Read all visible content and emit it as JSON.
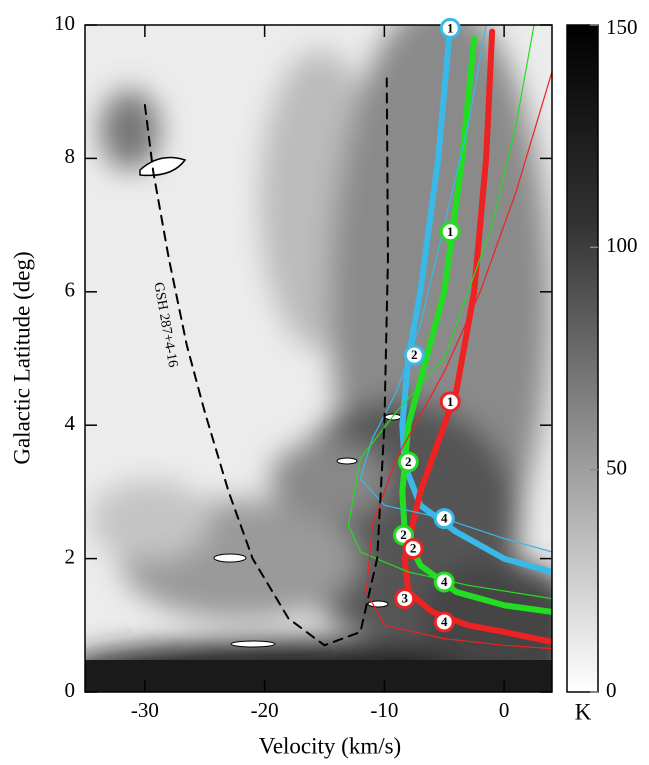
{
  "chart_data": {
    "type": "line",
    "x_label": "Velocity (km/s)",
    "y_label": "Galactic Latitude (deg)",
    "xlim": [
      -35,
      4
    ],
    "ylim": [
      0,
      10
    ],
    "xticks": [
      -30,
      -20,
      -10,
      0
    ],
    "yticks": [
      0,
      2,
      4,
      6,
      8,
      10
    ],
    "colorbar": {
      "lim": [
        0,
        150
      ],
      "ticks": [
        0,
        50,
        100,
        150
      ],
      "label": "K"
    },
    "series": [
      {
        "color": "#3ab8e8",
        "width": 6,
        "x": [
          -4.5,
          -5.5,
          -7,
          -8,
          -8.5,
          -8.3,
          -7,
          -4,
          0,
          4
        ],
        "values": [
          10,
          8,
          6,
          5,
          4,
          3.4,
          2.8,
          2.4,
          2.0,
          1.8
        ]
      },
      {
        "color": "#22dd22",
        "width": 6,
        "x": [
          -2.5,
          -3.5,
          -5,
          -6.5,
          -8,
          -8.5,
          -8.3,
          -7,
          -4,
          0,
          4
        ],
        "values": [
          9.8,
          8,
          6,
          5,
          4,
          3,
          2.4,
          1.9,
          1.5,
          1.3,
          1.2
        ]
      },
      {
        "color": "#ee2222",
        "width": 6,
        "x": [
          -1,
          -1.5,
          -2.5,
          -4,
          -5,
          -7,
          -8.3,
          -8,
          -6,
          -3,
          0,
          4
        ],
        "values": [
          9.9,
          8,
          6,
          4.5,
          4,
          3,
          2,
          1.5,
          1.2,
          1.0,
          0.9,
          0.75
        ]
      },
      {
        "color": "#3ab8e8",
        "width": 1.2,
        "x": [
          -1.5,
          -3,
          -5,
          -7,
          -9,
          -11,
          -12,
          -10,
          -5,
          0,
          4
        ],
        "values": [
          10,
          8.5,
          7,
          5.5,
          4.5,
          3.8,
          3.2,
          2.8,
          2.6,
          2.3,
          2.1
        ]
      },
      {
        "color": "#22dd22",
        "width": 1.2,
        "x": [
          2.5,
          1,
          -1,
          -3,
          -5,
          -9,
          -12,
          -13,
          -12,
          -8,
          -3,
          4
        ],
        "values": [
          10,
          8.5,
          7,
          6,
          5,
          4.2,
          3.5,
          2.5,
          2.1,
          1.8,
          1.6,
          1.4
        ]
      },
      {
        "color": "#ee2222",
        "width": 1.2,
        "x": [
          4,
          1,
          -2,
          -5,
          -9,
          -11,
          -11.5,
          -10,
          -5,
          0,
          4
        ],
        "values": [
          9.3,
          7.5,
          6,
          4.8,
          3.5,
          2.5,
          1.5,
          1.0,
          0.8,
          0.7,
          0.65
        ]
      },
      {
        "color": "#000000",
        "width": 2,
        "dash": true,
        "x": [
          -30,
          -29.3,
          -28,
          -26.5,
          -25,
          -23,
          -21,
          -18,
          -15,
          -12,
          -10.6,
          -10,
          -9.7,
          -9.8
        ],
        "values": [
          8.8,
          7.8,
          6.5,
          5.2,
          4.2,
          3,
          2,
          1.1,
          0.7,
          0.9,
          2,
          4,
          6.5,
          9.2
        ]
      }
    ],
    "annotations": [
      {
        "text": "GSH 287+4-16"
      },
      {
        "text": "1",
        "x": -4.5,
        "y": 9.95,
        "color": "#3ab8e8"
      },
      {
        "text": "1",
        "x": -4.5,
        "y": 6.9,
        "color": "#22dd22"
      },
      {
        "text": "1",
        "x": -4.5,
        "y": 4.35,
        "color": "#ee2222"
      },
      {
        "text": "2",
        "x": -7.5,
        "y": 5.05,
        "color": "#3ab8e8"
      },
      {
        "text": "2",
        "x": -8.0,
        "y": 3.45,
        "color": "#22dd22"
      },
      {
        "text": "2",
        "x": -8.4,
        "y": 2.35,
        "color": "#22dd22"
      },
      {
        "text": "2",
        "x": -7.6,
        "y": 2.15,
        "color": "#ee2222"
      },
      {
        "text": "3",
        "x": -8.3,
        "y": 1.4,
        "color": "#ee2222"
      },
      {
        "text": "4",
        "x": -5.0,
        "y": 2.6,
        "color": "#3ab8e8"
      },
      {
        "text": "4",
        "x": -5.0,
        "y": 1.65,
        "color": "#22dd22"
      },
      {
        "text": "4",
        "x": -5.0,
        "y": 1.05,
        "color": "#ee2222"
      }
    ]
  }
}
